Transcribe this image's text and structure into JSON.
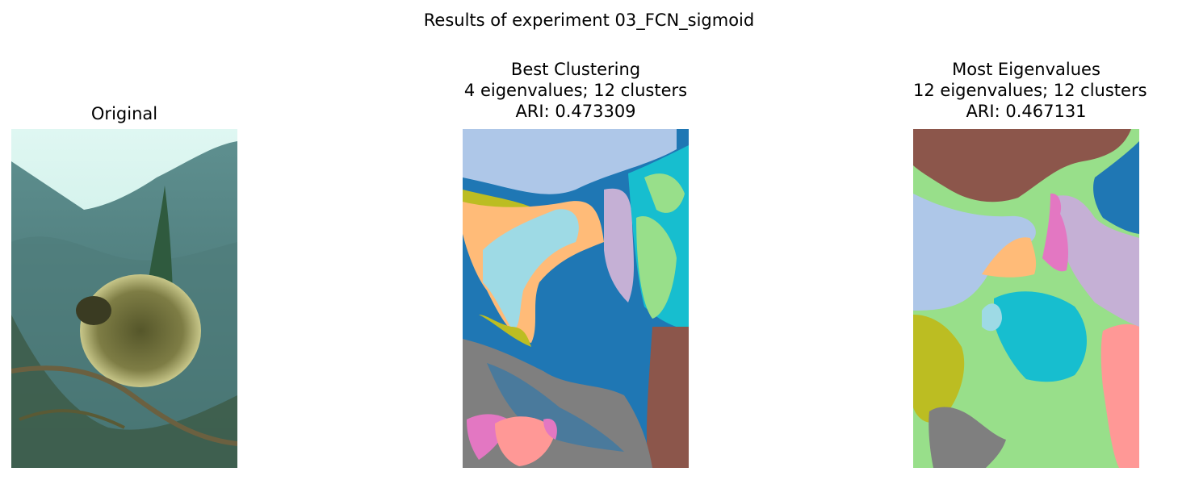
{
  "figure": {
    "suptitle": "Results of experiment 03_FCN_sigmoid",
    "panels": [
      {
        "title_lines": [
          "Original"
        ]
      },
      {
        "title_lines": [
          "Best Clustering",
          "4 eigenvalues; 12 clusters",
          "ARI: 0.473309"
        ]
      },
      {
        "title_lines": [
          "Most Eigenvalues",
          "12 eigenvalues; 12 clusters",
          "ARI: 0.467131"
        ]
      }
    ]
  },
  "palette": {
    "blue": "#1f77b4",
    "light_blue": "#aec7e8",
    "orange": "#ffbb78",
    "olive": "#bcbd22",
    "cyan": "#17becf",
    "light_cyan": "#9edae5",
    "green": "#98df8a",
    "purple": "#c5b0d5",
    "brown": "#8c564b",
    "gray": "#7f7f7f",
    "pink": "#e377c2",
    "salmon": "#ff9896"
  }
}
